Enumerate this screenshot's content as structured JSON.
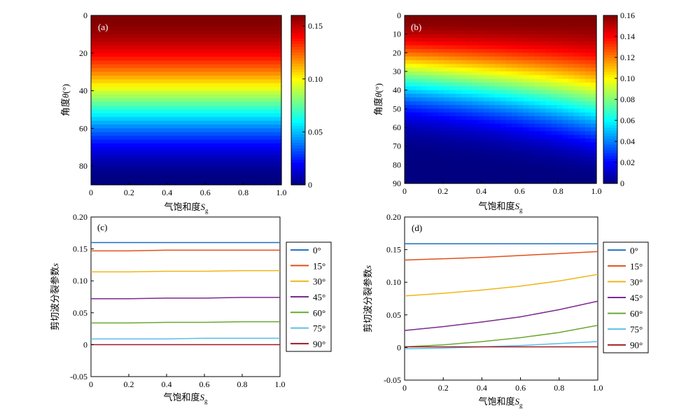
{
  "panels": {
    "a": {
      "tag": "(a)",
      "xlabel": "气饱和度",
      "xsub": "g",
      "xvar": "S",
      "ylabel_pre": "角度",
      "ylabel_var": "θ",
      "ylabel_post": "(°)"
    },
    "b": {
      "tag": "(b)",
      "xlabel": "气饱和度",
      "xsub": "g",
      "xvar": "S",
      "ylabel_pre": "角度",
      "ylabel_var": "θ",
      "ylabel_post": "(°)"
    },
    "c": {
      "tag": "(c)",
      "xlabel": "气饱和度",
      "xsub": "g",
      "xvar": "S",
      "ylabel_pre": "剪切波分裂参数",
      "ylabel_var": "s"
    },
    "d": {
      "tag": "(d)",
      "xlabel": "气饱和度",
      "xsub": "g",
      "xvar": "S",
      "ylabel_pre": "剪切波分裂参数",
      "ylabel_var": "s"
    }
  },
  "chart_data": [
    {
      "id": "a",
      "type": "heatmap",
      "x_range": [
        0,
        1
      ],
      "y_range": [
        0,
        90
      ],
      "y_reversed": true,
      "xticks": [
        "0",
        "0.2",
        "0.4",
        "0.6",
        "0.8",
        "1.0"
      ],
      "yticks": [
        "0",
        "20",
        "40",
        "60",
        "80"
      ],
      "colorbar": {
        "range": [
          0,
          0.16
        ],
        "ticks": [
          "0",
          "0.05",
          "0.10",
          "0.15"
        ],
        "tick_values": [
          0,
          0.05,
          0.1,
          0.15
        ]
      },
      "value_model": "s(theta) = 0.16 * cos(theta)^2, independent of Sg",
      "colormap": "jet"
    },
    {
      "id": "b",
      "type": "heatmap",
      "x_range": [
        0,
        1
      ],
      "y_range": [
        0,
        90
      ],
      "y_reversed": true,
      "xticks": [
        "0",
        "0.2",
        "0.4",
        "0.6",
        "0.8",
        "1.0"
      ],
      "yticks": [
        "0",
        "10",
        "20",
        "30",
        "40",
        "50",
        "60",
        "70",
        "80",
        "90"
      ],
      "colorbar": {
        "range": [
          0,
          0.16
        ],
        "ticks": [
          "0",
          "0.02",
          "0.04",
          "0.06",
          "0.08",
          "0.10",
          "0.12",
          "0.14",
          "0.16"
        ],
        "tick_values": [
          0,
          0.02,
          0.04,
          0.06,
          0.08,
          0.1,
          0.12,
          0.14,
          0.16
        ]
      },
      "value_model": "s decreases with theta faster at low Sg; at 45 deg s rises from 0.026 (Sg=0) to 0.072 (Sg=1)",
      "colormap": "jet"
    },
    {
      "id": "c",
      "type": "line",
      "x": [
        0,
        0.2,
        0.4,
        0.6,
        0.8,
        1.0
      ],
      "xticks": [
        "0",
        "0.2",
        "0.4",
        "0.6",
        "0.8",
        "1.0"
      ],
      "ylim": [
        -0.05,
        0.2
      ],
      "yticks": [
        "-0.05",
        "0",
        "0.05",
        "0.10",
        "0.15",
        "0.20"
      ],
      "legend_position": "right",
      "series": [
        {
          "name": "0°",
          "color": "#1f6fbf",
          "values": [
            0.16,
            0.16,
            0.16,
            0.16,
            0.16,
            0.16
          ]
        },
        {
          "name": "15°",
          "color": "#e0501a",
          "values": [
            0.147,
            0.147,
            0.148,
            0.148,
            0.148,
            0.148
          ]
        },
        {
          "name": "30°",
          "color": "#f0b51a",
          "values": [
            0.114,
            0.114,
            0.115,
            0.115,
            0.116,
            0.116
          ]
        },
        {
          "name": "45°",
          "color": "#7a2a90",
          "values": [
            0.072,
            0.072,
            0.073,
            0.073,
            0.074,
            0.074
          ]
        },
        {
          "name": "60°",
          "color": "#6aa832",
          "values": [
            0.034,
            0.034,
            0.035,
            0.035,
            0.036,
            0.036
          ]
        },
        {
          "name": "75°",
          "color": "#5bbfea",
          "values": [
            0.009,
            0.009,
            0.009,
            0.01,
            0.01,
            0.01
          ]
        },
        {
          "name": "90°",
          "color": "#a01a24",
          "values": [
            0.0,
            0.0,
            0.0,
            0.0,
            0.0,
            0.0
          ]
        }
      ]
    },
    {
      "id": "d",
      "type": "line",
      "x": [
        0,
        0.2,
        0.4,
        0.6,
        0.8,
        1.0
      ],
      "xticks": [
        "0",
        "0.2",
        "0.4",
        "0.6",
        "0.8",
        "1.0"
      ],
      "ylim": [
        -0.05,
        0.2
      ],
      "yticks": [
        "-0.05",
        "0",
        "0.05",
        "0.10",
        "0.15",
        "0.20"
      ],
      "legend_position": "right",
      "series": [
        {
          "name": "0°",
          "color": "#1f6fbf",
          "values": [
            0.159,
            0.159,
            0.159,
            0.159,
            0.159,
            0.159
          ]
        },
        {
          "name": "15°",
          "color": "#e0501a",
          "values": [
            0.134,
            0.136,
            0.138,
            0.141,
            0.144,
            0.147
          ]
        },
        {
          "name": "30°",
          "color": "#f0b51a",
          "values": [
            0.079,
            0.083,
            0.088,
            0.094,
            0.102,
            0.112
          ]
        },
        {
          "name": "45°",
          "color": "#7a2a90",
          "values": [
            0.026,
            0.032,
            0.039,
            0.047,
            0.058,
            0.071
          ]
        },
        {
          "name": "60°",
          "color": "#6aa832",
          "values": [
            0.001,
            0.004,
            0.009,
            0.015,
            0.023,
            0.034
          ]
        },
        {
          "name": "75°",
          "color": "#5bbfea",
          "values": [
            -0.002,
            -0.001,
            0.001,
            0.003,
            0.006,
            0.009
          ]
        },
        {
          "name": "90°",
          "color": "#a01a24",
          "values": [
            0.001,
            0.001,
            0.001,
            0.001,
            0.001,
            0.001
          ]
        }
      ]
    }
  ]
}
